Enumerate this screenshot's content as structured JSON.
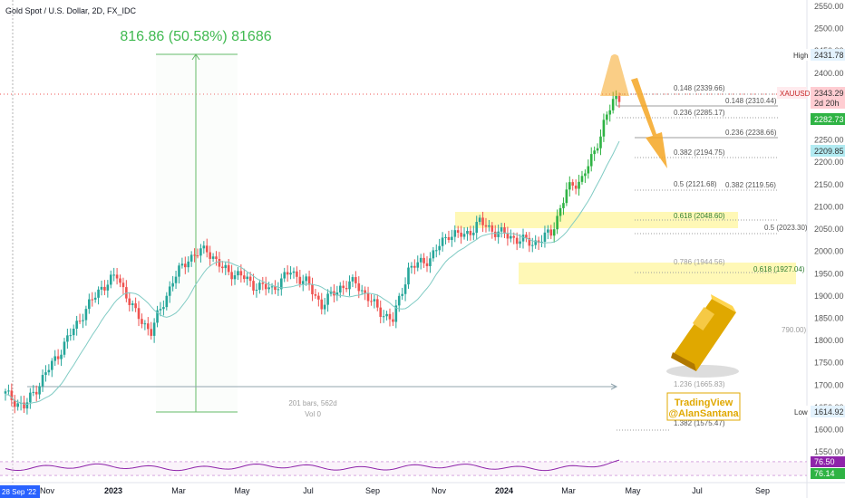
{
  "symbol_header": "Gold Spot / U.S. Dollar, 2D, FX_IDC",
  "measure": {
    "headline": "816.86 (50.58%) 81686",
    "bars": "201 bars, 562d",
    "vol": "Vol 0"
  },
  "fib_labels": [
    {
      "text": "0.148 (2339.66)"
    },
    {
      "text": "0.148 (2310.44)"
    },
    {
      "text": "0.236 (2285.17)"
    },
    {
      "text": "0.236 (2238.66)"
    },
    {
      "text": "0.382 (2194.75)"
    },
    {
      "text": "0.5 (2121.68)"
    },
    {
      "text": "0.382 (2119.56)"
    },
    {
      "text": "0.618 (2048.60)"
    },
    {
      "text": "0.5 (2023.30)"
    },
    {
      "text": "0.786 (1944.56)"
    },
    {
      "text": "0.618 (1927.04)"
    },
    {
      "text": "790.00)"
    },
    {
      "text": "1.236 (1665.83)"
    },
    {
      "text": "1.382 (1575.47)"
    }
  ],
  "price_badges": {
    "high_label": "High",
    "high_value": "2431.78",
    "symbol": "XAUUSD",
    "last": "2343.29",
    "countdown": "2d 20h",
    "green_value": "2282.73",
    "teal_value": "2209.85",
    "low_label": "Low",
    "low_value": "1614.92",
    "rsi_purple": "76.50",
    "rsi_green": "76.14"
  },
  "watermark": {
    "line1": "TradingView",
    "line2": "@AlanSantana"
  },
  "time_badge": "28 Sep '22",
  "colors": {
    "up": "#26a69a",
    "up_bright": "#2fb344",
    "down": "#ef5350",
    "highlight": "#fff59d",
    "arrow": "#f5a623",
    "rsi": "#8e24aa"
  },
  "chart_data": {
    "type": "candlestick",
    "title": "Gold Spot / U.S. Dollar, 2D, FX_IDC",
    "y_axis": {
      "ticks": [
        1550,
        1600,
        1650,
        1700,
        1750,
        1800,
        1850,
        1900,
        1950,
        2000,
        2050,
        2100,
        2150,
        2200,
        2250,
        2300,
        2350,
        2400,
        2450,
        2500,
        2550
      ],
      "range": [
        1532,
        2560
      ]
    },
    "x_axis": {
      "labels": [
        "Nov",
        "2023",
        "Mar",
        "May",
        "Jul",
        "Sep",
        "Nov",
        "2024",
        "Mar",
        "May",
        "Jul",
        "Sep"
      ]
    },
    "anchors": [
      [
        0,
        1680
      ],
      [
        6,
        1650
      ],
      [
        12,
        1715
      ],
      [
        18,
        1780
      ],
      [
        25,
        1860
      ],
      [
        31,
        1920
      ],
      [
        36,
        1945
      ],
      [
        42,
        1860
      ],
      [
        47,
        1820
      ],
      [
        54,
        1935
      ],
      [
        59,
        1985
      ],
      [
        65,
        2005
      ],
      [
        70,
        1960
      ],
      [
        76,
        1945
      ],
      [
        80,
        1925
      ],
      [
        86,
        1915
      ],
      [
        92,
        1955
      ],
      [
        97,
        1930
      ],
      [
        102,
        1880
      ],
      [
        108,
        1920
      ],
      [
        113,
        1930
      ],
      [
        120,
        1870
      ],
      [
        125,
        1845
      ],
      [
        130,
        1960
      ],
      [
        137,
        1985
      ],
      [
        143,
        2040
      ],
      [
        148,
        2035
      ],
      [
        153,
        2065
      ],
      [
        158,
        2045
      ],
      [
        164,
        2030
      ],
      [
        170,
        2018
      ],
      [
        176,
        2040
      ],
      [
        181,
        2135
      ],
      [
        186,
        2165
      ],
      [
        190,
        2220
      ],
      [
        193,
        2290
      ],
      [
        196,
        2335
      ],
      [
        198,
        2343
      ]
    ],
    "rsi": {
      "last": 76.14,
      "signal_last": 76.5
    }
  }
}
